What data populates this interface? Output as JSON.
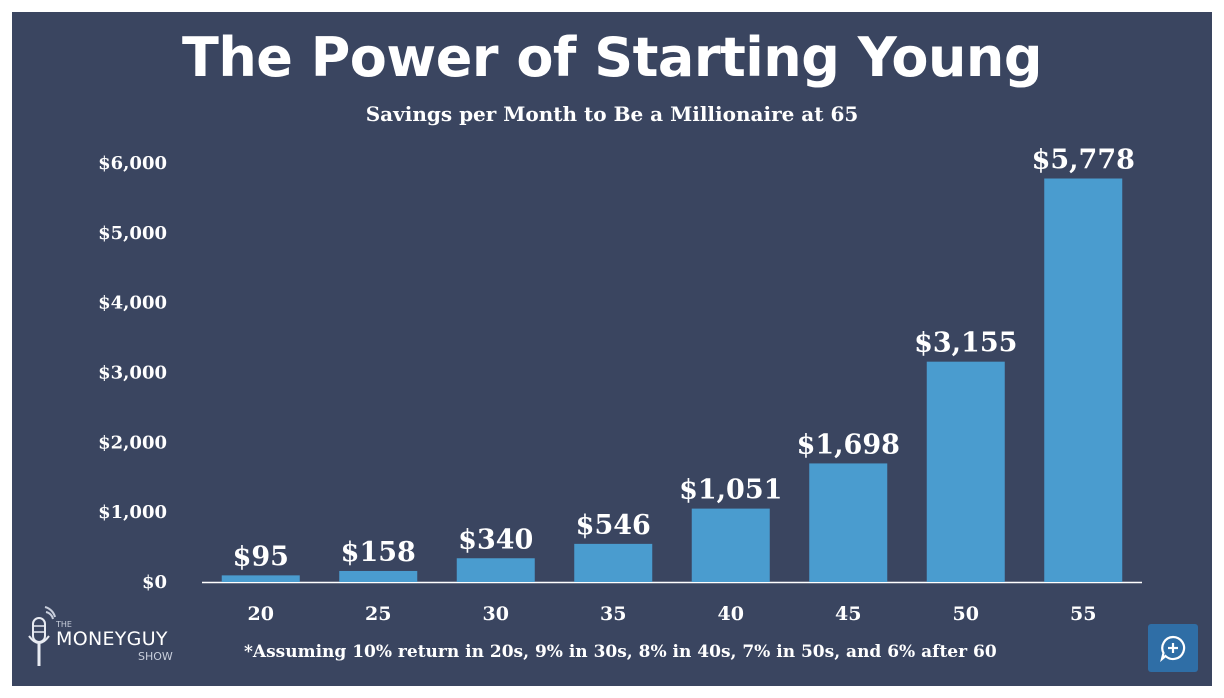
{
  "chart_data": {
    "type": "bar",
    "title": "The Power of Starting Young",
    "subtitle": "Savings per Month to Be a Millionaire at 65",
    "xlabel": "",
    "ylabel": "",
    "categories": [
      "20",
      "25",
      "30",
      "35",
      "40",
      "45",
      "50",
      "55"
    ],
    "values": [
      95,
      158,
      340,
      546,
      1051,
      1698,
      3155,
      5778
    ],
    "data_labels": [
      "$95",
      "$158",
      "$340",
      "$546",
      "$1,051",
      "$1,698",
      "$3,155",
      "$5,778"
    ],
    "ylim": [
      0,
      6000
    ],
    "yticks": [
      0,
      1000,
      2000,
      3000,
      4000,
      5000,
      6000
    ],
    "ytick_labels": [
      "$0",
      "$1,000",
      "$2,000",
      "$3,000",
      "$4,000",
      "$5,000",
      "$6,000"
    ],
    "grid": false,
    "legend": "none",
    "bar_color": "#4a9ccf",
    "background_color": "#3a4560",
    "footnote": "*Assuming 10% return in 20s, 9% in 30s, 8% in 40s, 7% in 50s, and 6% after 60"
  },
  "logo": {
    "the": "THE",
    "word": "MONEYGUY",
    "show": "SHOW",
    "icon": "microphone-icon"
  },
  "corner_button": {
    "icon": "chat-plus-icon",
    "color": "#2f6ea6"
  }
}
